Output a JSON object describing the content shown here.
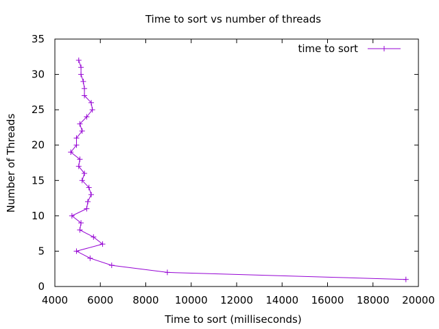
{
  "chart_data": {
    "type": "line",
    "title": "Time to sort vs number of threads",
    "xlabel": "Time to sort (milliseconds)",
    "ylabel": "Number of Threads",
    "xlim": [
      4000,
      20000
    ],
    "ylim": [
      0,
      35
    ],
    "xticks": [
      4000,
      6000,
      8000,
      10000,
      12000,
      14000,
      16000,
      18000,
      20000
    ],
    "yticks": [
      0,
      5,
      10,
      15,
      20,
      25,
      30,
      35
    ],
    "grid": false,
    "legend_position": "top-right",
    "series": [
      {
        "name": "time to sort",
        "color": "#9400d3",
        "marker": "plus",
        "points": [
          {
            "x": 19450,
            "y": 1
          },
          {
            "x": 8950,
            "y": 2
          },
          {
            "x": 6500,
            "y": 3
          },
          {
            "x": 5550,
            "y": 4
          },
          {
            "x": 4950,
            "y": 5
          },
          {
            "x": 6100,
            "y": 6
          },
          {
            "x": 5700,
            "y": 7
          },
          {
            "x": 5100,
            "y": 8
          },
          {
            "x": 5150,
            "y": 9
          },
          {
            "x": 4750,
            "y": 10
          },
          {
            "x": 5400,
            "y": 11
          },
          {
            "x": 5450,
            "y": 12
          },
          {
            "x": 5600,
            "y": 13
          },
          {
            "x": 5500,
            "y": 14
          },
          {
            "x": 5200,
            "y": 15
          },
          {
            "x": 5300,
            "y": 16
          },
          {
            "x": 5050,
            "y": 17
          },
          {
            "x": 5100,
            "y": 18
          },
          {
            "x": 4700,
            "y": 19
          },
          {
            "x": 4950,
            "y": 20
          },
          {
            "x": 4950,
            "y": 21
          },
          {
            "x": 5200,
            "y": 22
          },
          {
            "x": 5100,
            "y": 23
          },
          {
            "x": 5400,
            "y": 24
          },
          {
            "x": 5650,
            "y": 25
          },
          {
            "x": 5600,
            "y": 26
          },
          {
            "x": 5300,
            "y": 27
          },
          {
            "x": 5300,
            "y": 28
          },
          {
            "x": 5250,
            "y": 29
          },
          {
            "x": 5150,
            "y": 30
          },
          {
            "x": 5150,
            "y": 31
          },
          {
            "x": 5050,
            "y": 32
          }
        ]
      }
    ]
  }
}
